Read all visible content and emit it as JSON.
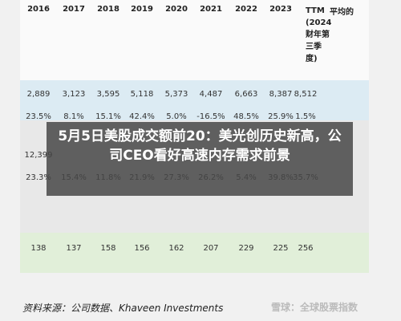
{
  "table": {
    "header": [
      "2016",
      "2017",
      "2018",
      "2019",
      "2020",
      "2021",
      "2022",
      "2023",
      "TTM (2024财年第三季度)",
      "平均的"
    ],
    "rows": [
      [
        "2,889",
        "3,123",
        "3,595",
        "5,118",
        "5,373",
        "4,487",
        "6,663",
        "8,387",
        "8,512"
      ],
      [
        "23.5%",
        "8.1%",
        "15.1%",
        "42.4%",
        "5.0%",
        "-16.5%",
        "48.5%",
        "25.9%",
        "1.5%"
      ],
      [
        "12,399"
      ],
      [
        "23.3%",
        "15.4%",
        "11.8%",
        "21.9%",
        "27.3%",
        "26.2%",
        "5.4%",
        "39.8%",
        "35.7%"
      ],
      [
        "138",
        "137",
        "158",
        "156",
        "162",
        "207",
        "229",
        "225",
        "256"
      ]
    ]
  },
  "source": "资料来源：公司数据、Khaveen Investments",
  "watermark": "雪球：全球股票指数",
  "overlay": {
    "title": "5月5日美股成交额前20：美光创历史新高，公司CEO看好高速内存需求前景"
  }
}
